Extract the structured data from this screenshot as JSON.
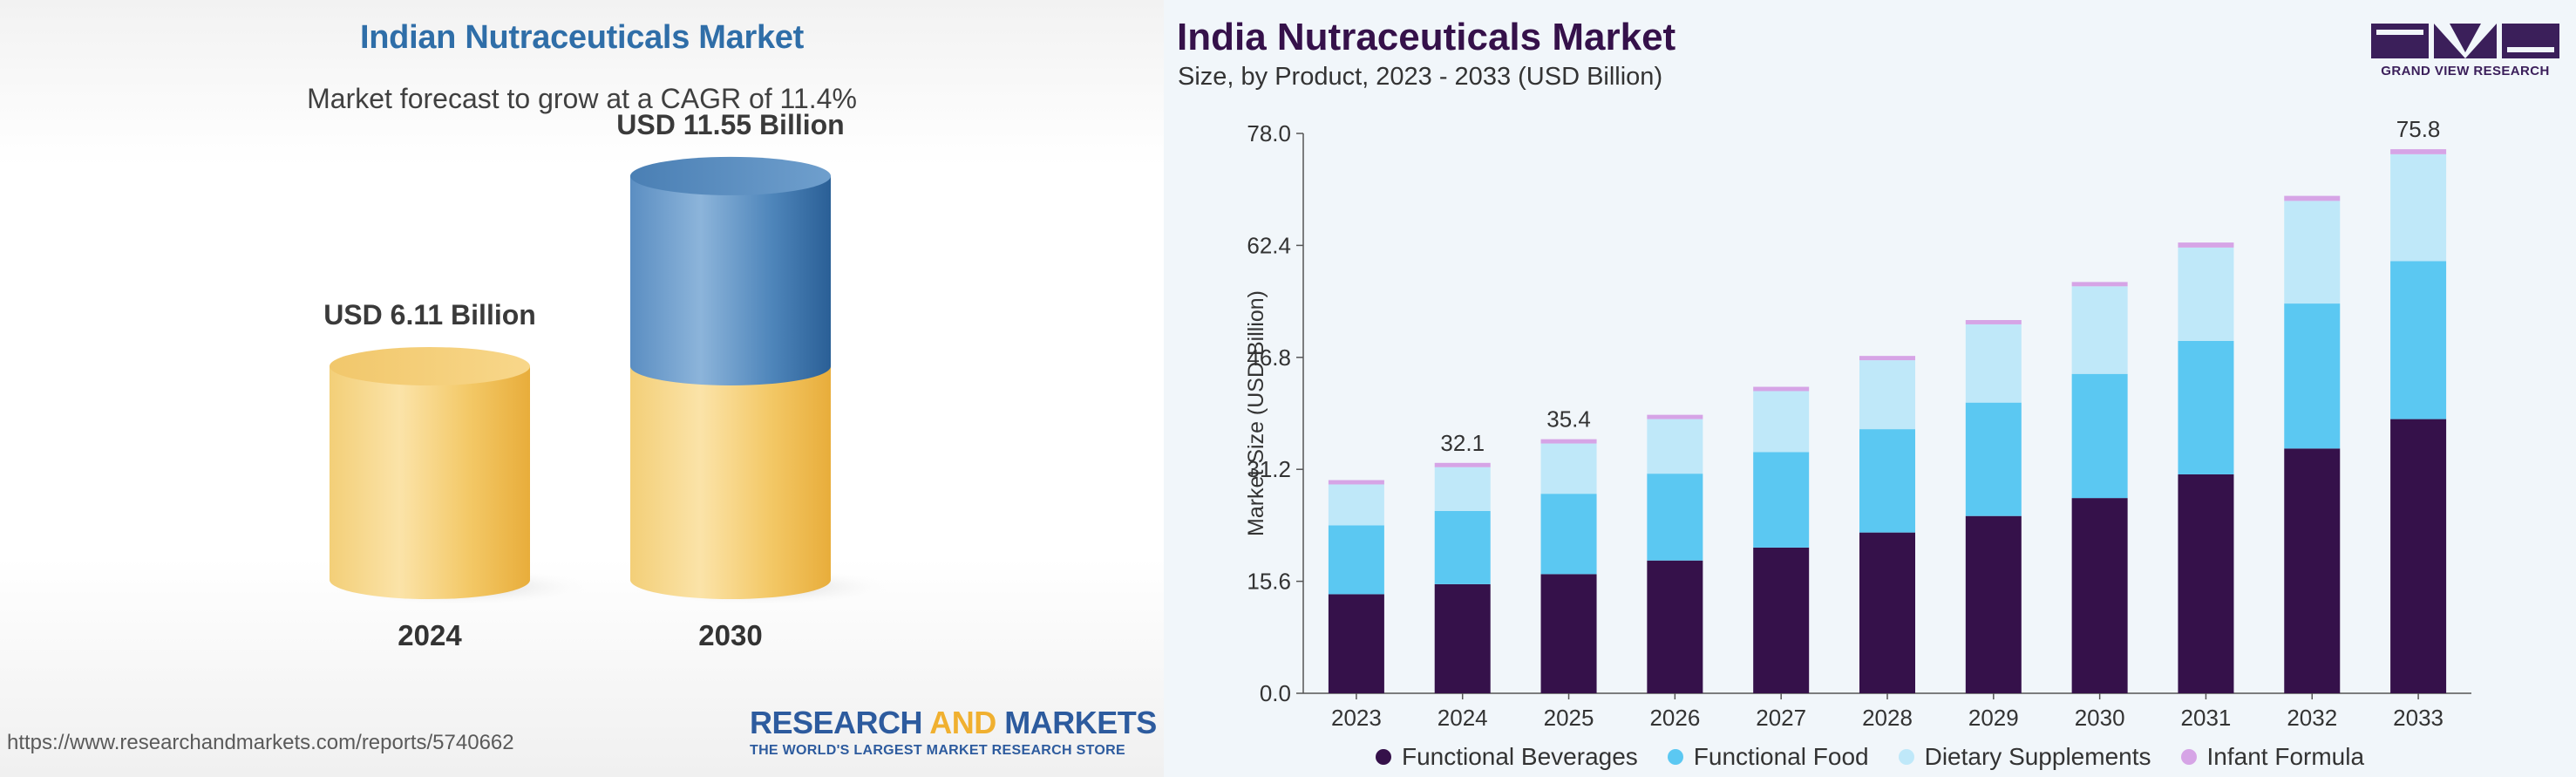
{
  "left": {
    "title": "Indian Nutraceuticals Market",
    "subtitle": "Market forecast to grow at a CAGR of 11.4%",
    "source_url": "https://www.researchandmarkets.com/reports/5740662",
    "logo": {
      "part1": "RESEARCH ",
      "part2": "AND",
      "part3": " MARKETS",
      "tagline": "THE WORLD'S LARGEST MARKET RESEARCH STORE"
    },
    "colors": {
      "gold": "#f3c14d",
      "blue": "#3a73a8",
      "title": "#2f6ea8"
    }
  },
  "right": {
    "title": "India Nutraceuticals Market",
    "subtitle": "Size, by Product, 2023 - 2033 (USD Billion)",
    "logo_text": "GRAND VIEW RESEARCH"
  },
  "chart_data": [
    {
      "type": "bar",
      "title": "Indian Nutraceuticals Market",
      "subtitle": "Market forecast to grow at a CAGR of 11.4%",
      "categories": [
        "2024",
        "2030"
      ],
      "values": [
        6.11,
        11.55
      ],
      "value_labels": [
        "USD 6.11 Billion",
        "USD 11.55 Billion"
      ],
      "unit": "USD Billion"
    },
    {
      "type": "bar",
      "stacked": true,
      "title": "India Nutraceuticals Market",
      "subtitle": "Size, by Product, 2023 - 2033 (USD Billion)",
      "xlabel": "",
      "ylabel": "Market Size (USD Billion)",
      "ylim": [
        0,
        78
      ],
      "yticks": [
        "0.0",
        "15.6",
        "31.2",
        "46.8",
        "62.4",
        "78.0"
      ],
      "categories": [
        "2023",
        "2024",
        "2025",
        "2026",
        "2027",
        "2028",
        "2029",
        "2030",
        "2031",
        "2032",
        "2033"
      ],
      "series": [
        {
          "name": "Functional Beverages",
          "color": "#35114a",
          "values": [
            13.8,
            15.2,
            16.6,
            18.5,
            20.3,
            22.4,
            24.7,
            27.2,
            30.5,
            34.1,
            38.2
          ]
        },
        {
          "name": "Functional Food",
          "color": "#5bc8f2",
          "values": [
            9.6,
            10.2,
            11.2,
            12.1,
            13.3,
            14.4,
            15.8,
            17.3,
            18.6,
            20.2,
            22.0
          ]
        },
        {
          "name": "Dietary Supplements",
          "color": "#bfe8f9",
          "values": [
            5.7,
            6.1,
            7.0,
            7.6,
            8.5,
            9.6,
            10.9,
            12.2,
            13.0,
            14.3,
            14.9
          ]
        },
        {
          "name": "Infant Formula",
          "color": "#d6a4e6",
          "values": [
            0.6,
            0.6,
            0.6,
            0.6,
            0.6,
            0.6,
            0.6,
            0.6,
            0.7,
            0.7,
            0.7
          ]
        }
      ],
      "annotations": [
        {
          "category": "2024",
          "label": "32.1"
        },
        {
          "category": "2025",
          "label": "35.4"
        },
        {
          "category": "2033",
          "label": "75.8"
        }
      ],
      "legend": "bottom"
    }
  ]
}
